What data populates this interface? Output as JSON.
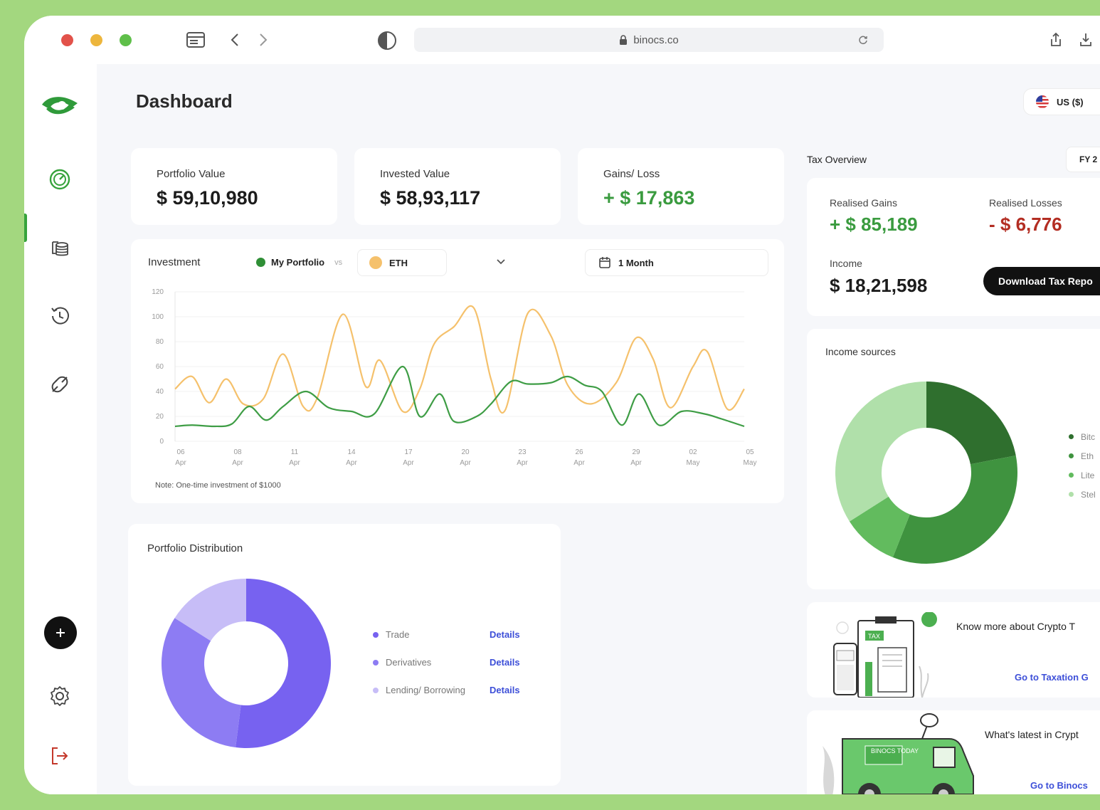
{
  "browser": {
    "url": "binocs.co"
  },
  "page": {
    "title": "Dashboard",
    "currency": "US ($)"
  },
  "stats": [
    {
      "label": "Portfolio Value",
      "value": "$ 59,10,980"
    },
    {
      "label": "Invested Value",
      "value": "$ 58,93,117"
    },
    {
      "label": "Gains/ Loss",
      "value": "+ $ 17,863"
    }
  ],
  "investment": {
    "title": "Investment",
    "series_a_label": "My Portfolio",
    "vs_label": "vs",
    "series_b_label": "ETH",
    "period": "1 Month",
    "note": "Note: One-time investment of $1000"
  },
  "chart_data": {
    "type": "line",
    "x": [
      "06 Apr",
      "08 Apr",
      "11 Apr",
      "14 Apr",
      "17 Apr",
      "20 Apr",
      "23 Apr",
      "26 Apr",
      "29 Apr",
      "02 May",
      "05 May"
    ],
    "x_ticks": [
      [
        "06",
        "Apr"
      ],
      [
        "08",
        "Apr"
      ],
      [
        "11",
        "Apr"
      ],
      [
        "14",
        "Apr"
      ],
      [
        "17",
        "Apr"
      ],
      [
        "20",
        "Apr"
      ],
      [
        "23",
        "Apr"
      ],
      [
        "26",
        "Apr"
      ],
      [
        "29",
        "Apr"
      ],
      [
        "02",
        "May"
      ],
      [
        "05",
        "May"
      ]
    ],
    "y_ticks": [
      0,
      20,
      40,
      60,
      80,
      100,
      120
    ],
    "ylim": [
      0,
      120
    ],
    "grid": true,
    "series": [
      {
        "name": "My Portfolio",
        "color": "#3e9d45",
        "values": [
          [
            0,
            12
          ],
          [
            0.3,
            13
          ],
          [
            0.7,
            12
          ],
          [
            1.0,
            14
          ],
          [
            1.3,
            28
          ],
          [
            1.6,
            17
          ],
          [
            1.9,
            28
          ],
          [
            2.3,
            40
          ],
          [
            2.7,
            27
          ],
          [
            3.1,
            24
          ],
          [
            3.5,
            22
          ],
          [
            4.0,
            60
          ],
          [
            4.3,
            20
          ],
          [
            4.65,
            38
          ],
          [
            4.9,
            16
          ],
          [
            5.3,
            20
          ],
          [
            5.55,
            30
          ],
          [
            5.9,
            48
          ],
          [
            6.2,
            46
          ],
          [
            6.6,
            47
          ],
          [
            6.9,
            52
          ],
          [
            7.2,
            45
          ],
          [
            7.5,
            40
          ],
          [
            7.85,
            13
          ],
          [
            8.15,
            38
          ],
          [
            8.5,
            13
          ],
          [
            8.9,
            24
          ],
          [
            9.3,
            22
          ],
          [
            9.6,
            18
          ],
          [
            10.0,
            12
          ]
        ]
      },
      {
        "name": "ETH",
        "color": "#f5c16c",
        "values": [
          [
            0,
            42
          ],
          [
            0.3,
            52
          ],
          [
            0.6,
            31
          ],
          [
            0.9,
            50
          ],
          [
            1.2,
            30
          ],
          [
            1.55,
            34
          ],
          [
            1.9,
            70
          ],
          [
            2.25,
            28
          ],
          [
            2.5,
            35
          ],
          [
            2.95,
            102
          ],
          [
            3.35,
            44
          ],
          [
            3.6,
            65
          ],
          [
            4.0,
            24
          ],
          [
            4.3,
            42
          ],
          [
            4.55,
            78
          ],
          [
            4.9,
            92
          ],
          [
            5.25,
            107
          ],
          [
            5.55,
            50
          ],
          [
            5.8,
            25
          ],
          [
            6.2,
            103
          ],
          [
            6.6,
            85
          ],
          [
            6.9,
            45
          ],
          [
            7.3,
            30
          ],
          [
            7.75,
            47
          ],
          [
            8.1,
            83
          ],
          [
            8.4,
            66
          ],
          [
            8.7,
            27
          ],
          [
            9.1,
            60
          ],
          [
            9.35,
            72
          ],
          [
            9.7,
            26
          ],
          [
            10.0,
            42
          ]
        ]
      }
    ]
  },
  "distribution": {
    "title": "Portfolio Distribution",
    "details_label": "Details",
    "items": [
      {
        "name": "Trade",
        "value": 52,
        "color": "#7762f0"
      },
      {
        "name": "Derivatives",
        "value": 32,
        "color": "#8d7cf3"
      },
      {
        "name": "Lending/ Borrowing",
        "value": 16,
        "color": "#c7bdf7"
      }
    ]
  },
  "tax": {
    "title": "Tax Overview",
    "fy": "FY 2",
    "realised_gains_label": "Realised Gains",
    "realised_gains": "+ $ 85,189",
    "realised_losses_label": "Realised Losses",
    "realised_losses": "- $ 6,776",
    "income_label": "Income",
    "income": "$ 18,21,598",
    "download_label": "Download Tax Repo"
  },
  "income_sources": {
    "title": "Income sources",
    "items": [
      {
        "name": "Bitc",
        "value": 22,
        "color": "#2f6f2e"
      },
      {
        "name": "Eth",
        "value": 34,
        "color": "#3f933f"
      },
      {
        "name": "Lite",
        "value": 10,
        "color": "#62bb5e"
      },
      {
        "name": "Stel",
        "value": 34,
        "color": "#b0e0aa"
      }
    ]
  },
  "promos": [
    {
      "title": "Know more about Crypto T",
      "link": "Go to Taxation G",
      "badge": "TAX"
    },
    {
      "title": "What's latest in Crypt",
      "link": "Go to Binocs",
      "badge": "BINOCS TODAY"
    }
  ],
  "colors": {
    "accent_green": "#37a33c",
    "loss_red": "#b32d22",
    "link_blue": "#3d4fd8",
    "background": "#a3d77f"
  }
}
